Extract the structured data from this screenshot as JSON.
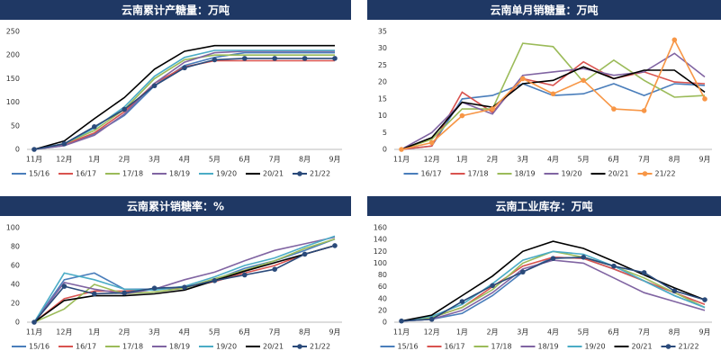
{
  "chart_data": [
    {
      "type": "line",
      "title": "云南累计产糖量：万吨",
      "categories": [
        "11月",
        "12月",
        "1月",
        "2月",
        "3月",
        "4月",
        "5月",
        "6月",
        "7月",
        "8月",
        "9月"
      ],
      "ylim": [
        0,
        250
      ],
      "yticks": [
        0,
        50,
        100,
        150,
        200,
        250
      ],
      "series": [
        {
          "name": "15/16",
          "color": "#4a7ebb",
          "values": [
            0,
            8,
            33,
            72,
            135,
            178,
            195,
            205,
            205,
            205,
            205
          ]
        },
        {
          "name": "16/17",
          "color": "#d9534f",
          "values": [
            0,
            10,
            35,
            80,
            140,
            175,
            188,
            188,
            188,
            188,
            188
          ]
        },
        {
          "name": "17/18",
          "color": "#9bbb59",
          "values": [
            0,
            12,
            40,
            85,
            150,
            190,
            200,
            200,
            200,
            200,
            200
          ]
        },
        {
          "name": "18/19",
          "color": "#8064a2",
          "values": [
            0,
            8,
            30,
            75,
            140,
            185,
            205,
            208,
            208,
            208,
            208
          ]
        },
        {
          "name": "19/20",
          "color": "#4bacc6",
          "values": [
            0,
            12,
            45,
            90,
            155,
            195,
            210,
            210,
            210,
            210,
            210
          ]
        },
        {
          "name": "20/21",
          "color": "#000000",
          "values": [
            0,
            18,
            65,
            110,
            170,
            208,
            220,
            220,
            220,
            220,
            220
          ]
        },
        {
          "name": "21/22",
          "color": "#2a4a7a",
          "marker": "circle",
          "values": [
            0,
            12,
            48,
            85,
            135,
            173,
            190,
            193,
            193,
            193,
            193
          ]
        }
      ]
    },
    {
      "type": "line",
      "title": "云南单月销糖量：万吨",
      "categories": [
        "11月",
        "12月",
        "1月",
        "2月",
        "3月",
        "4月",
        "5月",
        "6月",
        "7月",
        "8月",
        "9月"
      ],
      "ylim": [
        0,
        35
      ],
      "yticks": [
        0,
        5,
        10,
        15,
        20,
        25,
        30,
        35
      ],
      "series": [
        {
          "name": "16/17",
          "color": "#4a7ebb",
          "values": [
            0,
            1,
            15,
            16,
            19.5,
            16,
            16.5,
            19.5,
            16,
            19.5,
            19
          ]
        },
        {
          "name": "17/18",
          "color": "#d9534f",
          "values": [
            0,
            1,
            17,
            11,
            21,
            19,
            26,
            21,
            23,
            20,
            19.5
          ]
        },
        {
          "name": "18/19",
          "color": "#9bbb59",
          "values": [
            0,
            3,
            12,
            12,
            31.5,
            30.5,
            20,
            26.5,
            20.5,
            15.5,
            16
          ]
        },
        {
          "name": "19/20",
          "color": "#8064a2",
          "values": [
            0,
            5,
            14,
            10.5,
            22,
            23,
            24,
            22,
            23,
            28.5,
            21.5
          ]
        },
        {
          "name": "20/21",
          "color": "#000000",
          "values": [
            0,
            3.5,
            14,
            12.5,
            19.5,
            20.5,
            24.5,
            21,
            23.5,
            23.5,
            17
          ]
        },
        {
          "name": "21/22",
          "color": "#f79646",
          "marker": "circle",
          "values": [
            0,
            2,
            10,
            12,
            21,
            16.5,
            20.5,
            12,
            11.5,
            32.5,
            15
          ]
        }
      ]
    },
    {
      "type": "line",
      "title": "云南累计销糖率：%",
      "categories": [
        "11月",
        "12月",
        "1月",
        "2月",
        "3月",
        "4月",
        "5月",
        "6月",
        "7月",
        "8月",
        "9月"
      ],
      "ylim": [
        0,
        100
      ],
      "yticks": [
        0,
        20,
        40,
        60,
        80,
        100
      ],
      "series": [
        {
          "name": "15/16",
          "color": "#4a7ebb",
          "values": [
            0,
            45,
            52,
            35,
            35,
            36,
            45,
            57,
            65,
            76,
            88
          ]
        },
        {
          "name": "16/17",
          "color": "#d9534f",
          "values": [
            0,
            25,
            33,
            33,
            35,
            37,
            43,
            52,
            60,
            72,
            81
          ]
        },
        {
          "name": "17/18",
          "color": "#9bbb59",
          "values": [
            0,
            14,
            40,
            30,
            32,
            36,
            46,
            55,
            65,
            78,
            88
          ]
        },
        {
          "name": "18/19",
          "color": "#8064a2",
          "values": [
            0,
            42,
            35,
            30,
            35,
            45,
            53,
            65,
            76,
            83,
            90
          ]
        },
        {
          "name": "19/20",
          "color": "#4bacc6",
          "values": [
            0,
            52,
            45,
            35,
            34,
            38,
            48,
            60,
            68,
            80,
            91
          ]
        },
        {
          "name": "20/21",
          "color": "#000000",
          "values": [
            0,
            23,
            28,
            28,
            30,
            34,
            44,
            54,
            63,
            72,
            81
          ]
        },
        {
          "name": "21/22",
          "color": "#2a4a7a",
          "marker": "circle",
          "values": [
            0,
            38,
            30,
            31,
            36,
            37,
            44,
            50,
            56,
            72,
            81
          ]
        }
      ]
    },
    {
      "type": "line",
      "title": "云南工业库存：万吨",
      "categories": [
        "11月",
        "12月",
        "1月",
        "2月",
        "3月",
        "4月",
        "5月",
        "6月",
        "7月",
        "8月",
        "9月"
      ],
      "ylim": [
        0,
        160
      ],
      "yticks": [
        0,
        20,
        40,
        60,
        80,
        100,
        120,
        140,
        160
      ],
      "series": [
        {
          "name": "15/16",
          "color": "#4a7ebb",
          "values": [
            2,
            5,
            15,
            45,
            85,
            110,
            108,
            90,
            70,
            45,
            25
          ]
        },
        {
          "name": "16/17",
          "color": "#d9534f",
          "values": [
            2,
            8,
            25,
            60,
            95,
            110,
            108,
            90,
            70,
            50,
            30
          ]
        },
        {
          "name": "17/18",
          "color": "#9bbb59",
          "values": [
            2,
            8,
            25,
            55,
            100,
            120,
            110,
            95,
            75,
            50,
            25
          ]
        },
        {
          "name": "18/19",
          "color": "#8064a2",
          "values": [
            2,
            5,
            20,
            50,
            90,
            105,
            100,
            75,
            50,
            35,
            20
          ]
        },
        {
          "name": "19/20",
          "color": "#4bacc6",
          "values": [
            2,
            10,
            30,
            65,
            105,
            120,
            115,
            95,
            70,
            45,
            25
          ]
        },
        {
          "name": "20/21",
          "color": "#000000",
          "values": [
            2,
            12,
            45,
            78,
            120,
            137,
            125,
            103,
            80,
            58,
            38
          ]
        },
        {
          "name": "21/22",
          "color": "#2a4a7a",
          "marker": "circle",
          "values": [
            2,
            5,
            35,
            62,
            85,
            108,
            110,
            95,
            84,
            53,
            38
          ]
        }
      ]
    }
  ]
}
